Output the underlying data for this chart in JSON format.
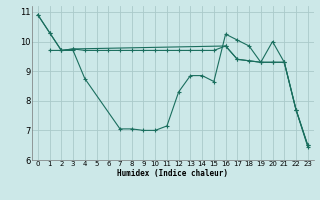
{
  "bg_color": "#cce8e8",
  "grid_color": "#aacaca",
  "line_color": "#1a6e5e",
  "xlabel": "Humidex (Indice chaleur)",
  "xlim": [
    -0.5,
    23.5
  ],
  "ylim": [
    6,
    11.2
  ],
  "yticks": [
    6,
    7,
    8,
    9,
    10,
    11
  ],
  "xticks": [
    0,
    1,
    2,
    3,
    4,
    5,
    6,
    7,
    8,
    9,
    10,
    11,
    12,
    13,
    14,
    15,
    16,
    17,
    18,
    19,
    20,
    21,
    22,
    23
  ],
  "series": [
    {
      "x": [
        0,
        1,
        2,
        3,
        4,
        7,
        8,
        9,
        10,
        11,
        12,
        13,
        14,
        15,
        16,
        17,
        18,
        19,
        20,
        21,
        22,
        23
      ],
      "y": [
        10.9,
        10.3,
        9.7,
        9.7,
        8.75,
        7.05,
        7.05,
        7.0,
        7.0,
        7.15,
        8.3,
        8.85,
        8.85,
        8.65,
        10.25,
        10.05,
        9.85,
        9.3,
        9.3,
        9.3,
        7.7,
        6.5
      ]
    },
    {
      "x": [
        1,
        2,
        3,
        4,
        5,
        6,
        7,
        8,
        9,
        10,
        11,
        12,
        13,
        14,
        15,
        16,
        17,
        18,
        19,
        20,
        21,
        22,
        23
      ],
      "y": [
        9.7,
        9.7,
        9.75,
        9.7,
        9.7,
        9.7,
        9.7,
        9.7,
        9.7,
        9.7,
        9.7,
        9.7,
        9.7,
        9.7,
        9.7,
        9.85,
        9.4,
        9.35,
        9.3,
        9.3,
        9.3,
        7.7,
        6.5
      ]
    },
    {
      "x": [
        0,
        1,
        2,
        3,
        16,
        17,
        19,
        20,
        21,
        22,
        23
      ],
      "y": [
        10.9,
        10.3,
        9.7,
        9.75,
        9.85,
        9.4,
        9.3,
        10.0,
        9.3,
        7.7,
        6.45
      ]
    }
  ]
}
